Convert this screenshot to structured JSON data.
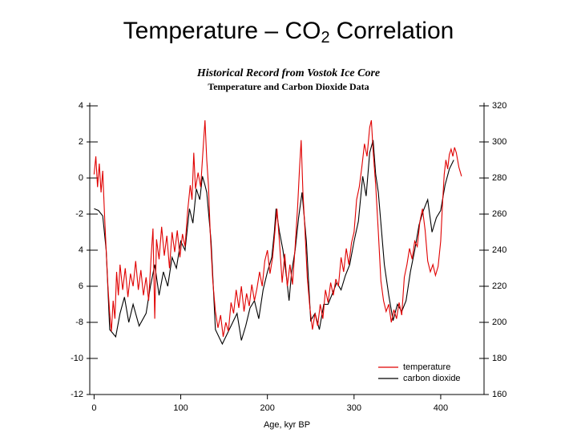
{
  "chart_data": {
    "type": "line",
    "title": [
      "Temperature – CO",
      "2",
      "Correlation"
    ],
    "subtitle": [
      "Historical Record from Vostok Ice Core",
      "Temperature and Carbon Dioxide Data"
    ],
    "xlabel": "Age, kyr BP",
    "xlim": [
      -5,
      450
    ],
    "xticks": [
      0,
      100,
      200,
      300,
      400
    ],
    "ylim": [
      -12,
      4
    ],
    "yticks": [
      4,
      2,
      0,
      -2,
      {
        "value": -4,
        "label": "4"
      },
      {
        "value": -6,
        "label": "6"
      },
      -8,
      -10,
      -12
    ],
    "y2lim": [
      160,
      320
    ],
    "y2ticks": [
      320,
      300,
      280,
      260,
      240,
      220,
      200,
      180,
      160
    ],
    "legend": "lower right",
    "series": [
      {
        "name": "temperature",
        "color": "#e00000",
        "x": [
          0,
          2,
          4,
          6,
          8,
          10,
          12,
          14,
          16,
          18,
          20,
          22,
          24,
          26,
          28,
          30,
          33,
          36,
          39,
          42,
          45,
          48,
          51,
          54,
          57,
          60,
          63,
          66,
          68,
          70,
          72,
          75,
          78,
          81,
          84,
          87,
          90,
          93,
          96,
          99,
          102,
          105,
          108,
          111,
          113,
          115,
          117,
          120,
          123,
          126,
          128,
          130,
          132,
          134,
          137,
          140,
          143,
          146,
          149,
          152,
          155,
          158,
          161,
          164,
          167,
          170,
          173,
          176,
          179,
          182,
          185,
          188,
          191,
          194,
          197,
          200,
          203,
          206,
          209,
          211,
          214,
          217,
          220,
          223,
          226,
          229,
          232,
          235,
          237,
          239,
          241,
          243,
          246,
          249,
          252,
          255,
          258,
          261,
          264,
          267,
          270,
          273,
          276,
          279,
          282,
          285,
          288,
          291,
          294,
          297,
          300,
          303,
          306,
          309,
          312,
          315,
          318,
          320,
          322,
          325,
          328,
          331,
          334,
          337,
          340,
          343,
          346,
          349,
          352,
          355,
          358,
          361,
          364,
          367,
          370,
          373,
          376,
          379,
          382,
          385,
          388,
          391,
          394,
          397,
          400,
          402,
          404,
          406,
          408,
          410,
          412,
          414,
          416,
          418,
          421,
          424
        ],
        "values": [
          0.2,
          1.2,
          -0.5,
          0.8,
          -0.8,
          0.4,
          -2,
          -4,
          -6,
          -7.5,
          -8.5,
          -6.8,
          -7.8,
          -5.2,
          -6.5,
          -4.8,
          -6.2,
          -5,
          -6.6,
          -5.3,
          -6,
          -4.6,
          -6.2,
          -5.1,
          -6.5,
          -5.5,
          -6.8,
          -4.2,
          -2.8,
          -7.8,
          -3.4,
          -4.5,
          -2.7,
          -4.3,
          -3.2,
          -5,
          -3,
          -4.1,
          -2.9,
          -4.4,
          -3.1,
          -3.8,
          -1.8,
          -0.4,
          -1.2,
          1.4,
          -0.6,
          0.3,
          -0.5,
          1.8,
          3.2,
          1,
          -0.4,
          -3,
          -5.7,
          -7.4,
          -8.3,
          -7.6,
          -8.8,
          -8,
          -8.5,
          -6.9,
          -7.5,
          -6.2,
          -7.2,
          -6,
          -7.4,
          -6.4,
          -7.1,
          -5.9,
          -6.8,
          -6.1,
          -5.2,
          -6,
          -4.6,
          -4,
          -5.3,
          -4.4,
          -2.8,
          -1.7,
          -3.6,
          -5.8,
          -4.2,
          -6,
          -4.8,
          -5.9,
          -3.8,
          -1.5,
          0.5,
          2.1,
          -0.8,
          -2.6,
          -5.5,
          -7.2,
          -8.4,
          -7.5,
          -8.2,
          -7,
          -7.8,
          -6.2,
          -6.9,
          -5.8,
          -6.5,
          -5.6,
          -6,
          -4.4,
          -5.2,
          -3.9,
          -4.8,
          -3.6,
          -3,
          -1.2,
          -0.5,
          0.6,
          1.9,
          1.2,
          2.8,
          3.2,
          1.5,
          -0.4,
          -3,
          -5.7,
          -6.8,
          -7.4,
          -7,
          -8,
          -7.3,
          -7.8,
          -6.9,
          -7.6,
          -5.5,
          -4.8,
          -3.9,
          -4.5,
          -3.5,
          -3.8,
          -2.4,
          -1.7,
          -2.9,
          -4.6,
          -5.2,
          -4.8,
          -5.4,
          -4.9,
          -3.5,
          -1.5,
          0.2,
          1,
          0.5,
          1.3,
          1.6,
          1.2,
          1.7,
          1.4,
          0.6,
          0.1
        ]
      },
      {
        "name": "carbon dioxide",
        "color": "#000000",
        "axis": "y2",
        "x": [
          0,
          5,
          10,
          14,
          18,
          25,
          30,
          35,
          40,
          45,
          52,
          60,
          65,
          70,
          75,
          80,
          85,
          90,
          95,
          100,
          105,
          110,
          114,
          118,
          122,
          125,
          128,
          130,
          135,
          140,
          148,
          155,
          160,
          165,
          170,
          175,
          180,
          185,
          190,
          195,
          200,
          205,
          208,
          210,
          214,
          218,
          222,
          225,
          228,
          232,
          236,
          240,
          245,
          250,
          255,
          260,
          265,
          270,
          275,
          280,
          285,
          290,
          295,
          300,
          305,
          310,
          314,
          318,
          322,
          325,
          328,
          335,
          340,
          345,
          350,
          355,
          360,
          365,
          370,
          375,
          380,
          385,
          390,
          395,
          400,
          405,
          410,
          415
        ],
        "values": [
          263,
          262,
          259,
          240,
          196,
          192,
          205,
          214,
          200,
          210,
          198,
          205,
          220,
          232,
          215,
          228,
          220,
          236,
          230,
          245,
          240,
          263,
          255,
          274,
          268,
          281,
          276,
          272,
          245,
          196,
          188,
          195,
          200,
          205,
          190,
          198,
          208,
          212,
          202,
          218,
          228,
          236,
          250,
          263,
          250,
          240,
          225,
          212,
          228,
          240,
          258,
          272,
          245,
          201,
          205,
          196,
          210,
          210,
          216,
          222,
          218,
          226,
          232,
          245,
          256,
          281,
          270,
          294,
          301,
          282,
          272,
          232,
          215,
          201,
          210,
          206,
          212,
          228,
          240,
          254,
          262,
          268,
          250,
          258,
          262,
          276,
          285,
          290
        ]
      }
    ]
  }
}
